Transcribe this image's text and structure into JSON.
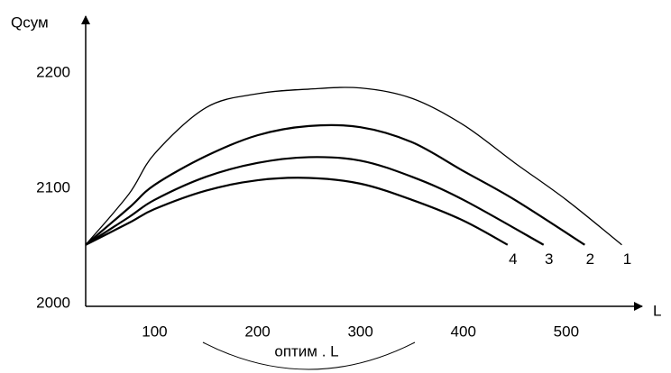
{
  "chart_data": {
    "type": "line",
    "y_label": "Qсум",
    "x_label": "L",
    "annotation": "оптим . L",
    "xlim": [
      33,
      572
    ],
    "ylim": [
      2000,
      2250
    ],
    "xticks": [
      100,
      200,
      300,
      400,
      500
    ],
    "yticks": [
      2000,
      2100,
      2200
    ],
    "series": [
      {
        "name": "1",
        "color": "#000000",
        "x": [
          33,
          75,
          100,
          150,
          200,
          250,
          300,
          350,
          400,
          450,
          500,
          554
        ],
        "values": [
          2051,
          2095,
          2130,
          2170,
          2182,
          2186,
          2187,
          2178,
          2155,
          2122,
          2090,
          2051
        ]
      },
      {
        "name": "2",
        "color": "#000000",
        "x": [
          33,
          75,
          100,
          150,
          200,
          250,
          300,
          350,
          400,
          450,
          518
        ],
        "values": [
          2051,
          2083,
          2103,
          2128,
          2146,
          2154,
          2153,
          2140,
          2115,
          2090,
          2051
        ]
      },
      {
        "name": "3",
        "color": "#000000",
        "x": [
          33,
          75,
          100,
          150,
          200,
          250,
          300,
          350,
          400,
          478
        ],
        "values": [
          2051,
          2075,
          2090,
          2110,
          2122,
          2127,
          2124,
          2110,
          2090,
          2051
        ]
      },
      {
        "name": "4",
        "color": "#000000",
        "x": [
          33,
          75,
          100,
          150,
          200,
          250,
          300,
          350,
          400,
          443
        ],
        "values": [
          2051,
          2070,
          2082,
          2098,
          2107,
          2109,
          2104,
          2090,
          2072,
          2051
        ]
      }
    ]
  }
}
